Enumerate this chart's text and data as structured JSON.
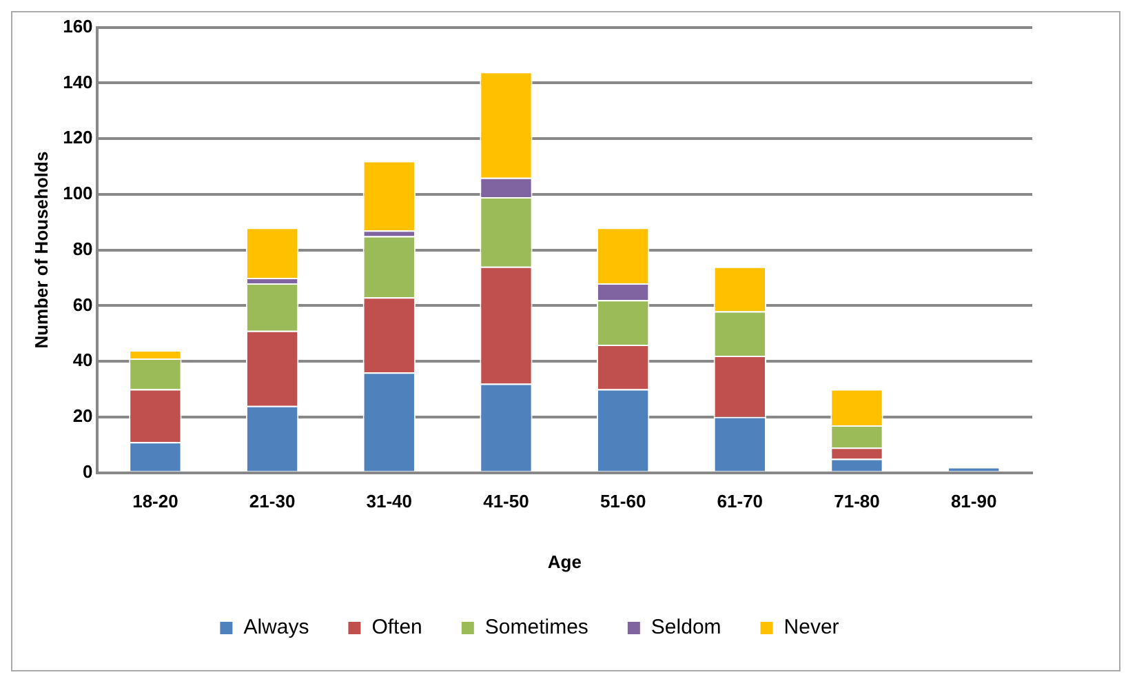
{
  "chart_data": {
    "type": "bar",
    "stacked": true,
    "xlabel": "Age",
    "ylabel": "Number of Households",
    "categories": [
      "18-20",
      "21-30",
      "31-40",
      "41-50",
      "51-60",
      "61-70",
      "71-80",
      "81-90"
    ],
    "series": [
      {
        "name": "Always",
        "color": "#4f81bd",
        "values": [
          11,
          24,
          36,
          32,
          30,
          20,
          5,
          2
        ]
      },
      {
        "name": "Often",
        "color": "#c0504d",
        "values": [
          19,
          27,
          27,
          42,
          16,
          22,
          4,
          0
        ]
      },
      {
        "name": "Sometimes",
        "color": "#9bbb59",
        "values": [
          11,
          17,
          22,
          25,
          16,
          16,
          8,
          0
        ]
      },
      {
        "name": "Seldom",
        "color": "#8064a2",
        "values": [
          0,
          2,
          2,
          7,
          6,
          0,
          0,
          0
        ]
      },
      {
        "name": "Never",
        "color": "#ffc000",
        "values": [
          3,
          18,
          25,
          38,
          20,
          16,
          13,
          0
        ]
      }
    ],
    "ylim": [
      0,
      160
    ],
    "yticks": [
      0,
      20,
      40,
      60,
      80,
      100,
      120,
      140,
      160
    ],
    "grid": "y",
    "legend": "bottom"
  }
}
